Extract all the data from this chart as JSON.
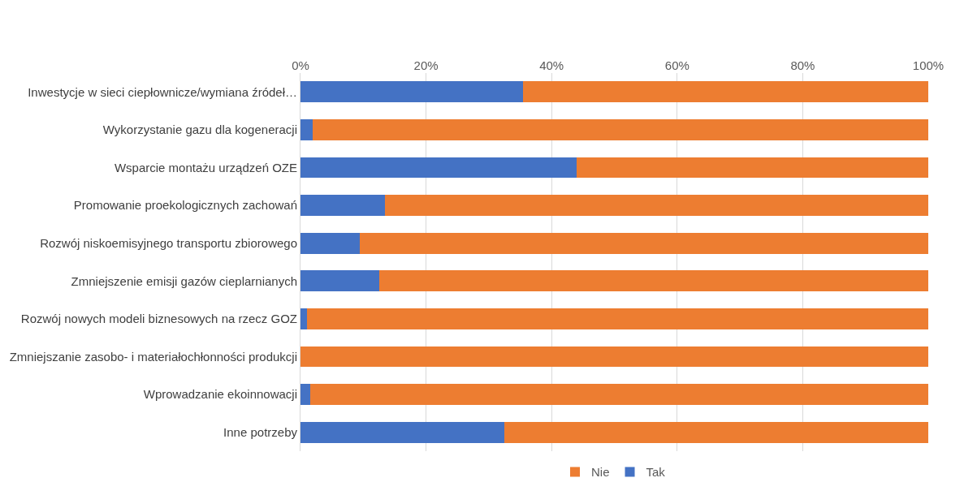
{
  "chart_data": {
    "type": "bar",
    "orientation": "horizontal",
    "stacked": true,
    "categories": [
      "Inwestycje w sieci ciepłownicze/wymiana źródeł…",
      "Wykorzystanie gazu dla kogeneracji",
      "Wsparcie montażu urządzeń OZE",
      "Promowanie proekologicznych zachowań",
      "Rozwój niskoemisyjnego transportu zbiorowego",
      "Zmniejszenie emisji gazów cieplarnianych",
      "Rozwój nowych modeli biznesowych na rzecz GOZ",
      "Zmniejszanie zasobo- i materiałochłonności produkcji",
      "Wprowadzanie ekoinnowacji",
      "Inne potrzeby"
    ],
    "series": [
      {
        "name": "Tak",
        "color": "#4472c4",
        "values": [
          35.5,
          2,
          44,
          13.5,
          9.5,
          12.5,
          1,
          0,
          1.5,
          32.5
        ]
      },
      {
        "name": "Nie",
        "color": "#ed7d31",
        "values": [
          64.5,
          98,
          56,
          86.5,
          90.5,
          87.5,
          99,
          100,
          98.5,
          67.5
        ]
      }
    ],
    "xlim": [
      0,
      100
    ],
    "xticks": [
      {
        "value": 0,
        "label": "0%"
      },
      {
        "value": 20,
        "label": "20%"
      },
      {
        "value": 40,
        "label": "40%"
      },
      {
        "value": 60,
        "label": "60%"
      },
      {
        "value": 80,
        "label": "80%"
      },
      {
        "value": 100,
        "label": "100%"
      }
    ],
    "grid": "x",
    "legend": "bottom"
  }
}
